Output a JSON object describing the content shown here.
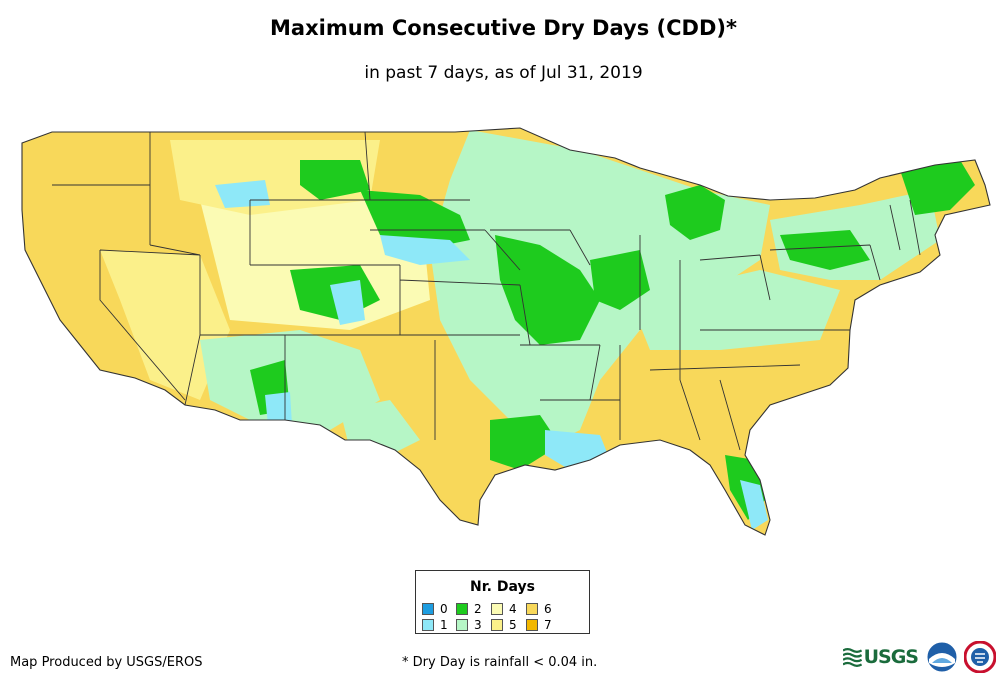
{
  "header": {
    "title": "Maximum Consecutive Dry Days (CDD)*",
    "subtitle": "in past 7 days, as of Jul 31, 2019"
  },
  "legend": {
    "title": "Nr. Days",
    "items": [
      {
        "label": "0",
        "color": "#1e9de0"
      },
      {
        "label": "1",
        "color": "#8ee8f8"
      },
      {
        "label": "2",
        "color": "#1ecb1e"
      },
      {
        "label": "3",
        "color": "#b6f6c6"
      },
      {
        "label": "4",
        "color": "#fbfbb4"
      },
      {
        "label": "5",
        "color": "#fbf08a"
      },
      {
        "label": "6",
        "color": "#f8d85a"
      },
      {
        "label": "7",
        "color": "#f2b700"
      }
    ]
  },
  "footer": {
    "credit": "Map Produced by USGS/EROS",
    "footnote": "* Dry Day is rainfall < 0.04 in."
  },
  "logos": {
    "usgs": "USGS",
    "noaa_icon": "noaa-seal-icon",
    "nws_icon": "nws-seal-icon"
  },
  "colors": {
    "dry": "#f8d85a",
    "moist": "#b6f6c6",
    "wet": "#1ecb1e",
    "very_wet": "#8ee8f8",
    "state_line": "#333333"
  }
}
